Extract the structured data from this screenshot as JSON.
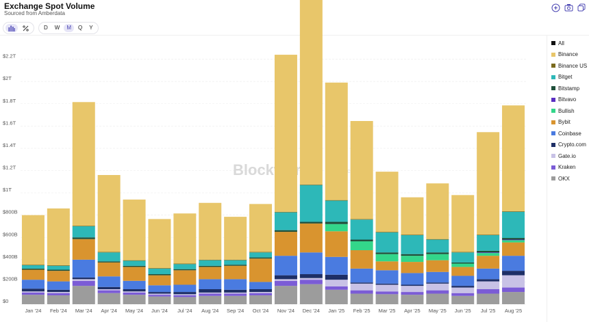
{
  "header": {
    "title": "Exchange Spot Volume",
    "subtitle": "Sourced from Amberdata"
  },
  "toolbar": {
    "chart_icons": [
      {
        "name": "bar-chart-icon",
        "active": true
      },
      {
        "name": "percent-icon",
        "active": false
      }
    ],
    "periods": [
      {
        "label": "D",
        "active": false
      },
      {
        "label": "W",
        "active": false
      },
      {
        "label": "M",
        "active": true
      },
      {
        "label": "Q",
        "active": false
      },
      {
        "label": "Y",
        "active": false
      }
    ]
  },
  "top_icons": [
    "zoom-in-icon",
    "camera-icon",
    "copy-icon"
  ],
  "watermark": {
    "brand": "Blockworks",
    "tag": "Research"
  },
  "legend": [
    {
      "label": "All",
      "color": "#111111"
    },
    {
      "label": "Binance",
      "color": "#E8C66A"
    },
    {
      "label": "Binance US",
      "color": "#7A6A1E"
    },
    {
      "label": "Bitget",
      "color": "#2DB8B8"
    },
    {
      "label": "Bitstamp",
      "color": "#1F4F3A"
    },
    {
      "label": "Bitvavo",
      "color": "#5A2FC2"
    },
    {
      "label": "Bullish",
      "color": "#33D68A"
    },
    {
      "label": "Bybit",
      "color": "#D9942F"
    },
    {
      "label": "Coinbase",
      "color": "#4A7BE0"
    },
    {
      "label": "Crypto.com",
      "color": "#1E2F66"
    },
    {
      "label": "Gate.io",
      "color": "#C8C2E6"
    },
    {
      "label": "Kraken",
      "color": "#7B5CD6"
    },
    {
      "label": "OKX",
      "color": "#9C9C9C"
    }
  ],
  "chart_data": {
    "type": "bar",
    "stacked": true,
    "ylim": [
      0,
      2400000000000
    ],
    "yticks": [
      {
        "value": 0,
        "label": "$0"
      },
      {
        "value": 200000000000,
        "label": "$200B"
      },
      {
        "value": 400000000000,
        "label": "$400B"
      },
      {
        "value": 600000000000,
        "label": "$600B"
      },
      {
        "value": 800000000000,
        "label": "$800B"
      },
      {
        "value": 1000000000000,
        "label": "$1T"
      },
      {
        "value": 1200000000000,
        "label": "$1.2T"
      },
      {
        "value": 1400000000000,
        "label": "$1.4T"
      },
      {
        "value": 1600000000000,
        "label": "$1.6T"
      },
      {
        "value": 1800000000000,
        "label": "$1.8T"
      },
      {
        "value": 2000000000000,
        "label": "$2T"
      },
      {
        "value": 2200000000000,
        "label": "$2.2T"
      }
    ],
    "grid": true,
    "legend_position": "right",
    "categories": [
      "Jan '24",
      "Feb '24",
      "Mar '24",
      "Apr '24",
      "May '24",
      "Jun '24",
      "Jul '24",
      "Aug '24",
      "Sep '24",
      "Oct '24",
      "Nov '24",
      "Dec '24",
      "Jan '25",
      "Feb '25",
      "Mar '25",
      "Apr '25",
      "May '25",
      "Jun '25",
      "Jul '25",
      "Aug '25"
    ],
    "series": [
      {
        "name": "OKX",
        "color": "#9C9C9C",
        "values": [
          85,
          80,
          165,
          100,
          85,
          70,
          65,
          75,
          75,
          80,
          165,
          180,
          130,
          95,
          90,
          85,
          95,
          75,
          95,
          110
        ]
      },
      {
        "name": "Kraken",
        "color": "#7B5CD6",
        "values": [
          20,
          20,
          45,
          25,
          20,
          15,
          15,
          20,
          20,
          20,
          45,
          40,
          30,
          30,
          25,
          25,
          30,
          25,
          40,
          40
        ]
      },
      {
        "name": "Gate.io",
        "color": "#C8C2E6",
        "values": [
          10,
          10,
          15,
          10,
          10,
          10,
          10,
          10,
          10,
          10,
          15,
          15,
          60,
          60,
          60,
          55,
          60,
          50,
          70,
          110
        ]
      },
      {
        "name": "Crypto.com",
        "color": "#1E2F66",
        "values": [
          25,
          20,
          15,
          20,
          20,
          15,
          20,
          30,
          25,
          25,
          35,
          35,
          45,
          10,
          10,
          10,
          10,
          15,
          20,
          40
        ]
      },
      {
        "name": "Coinbase",
        "color": "#4A7BE0",
        "values": [
          80,
          75,
          160,
          95,
          75,
          60,
          65,
          90,
          95,
          65,
          175,
          195,
          160,
          125,
          120,
          105,
          95,
          90,
          95,
          135
        ]
      },
      {
        "name": "Bybit",
        "color": "#D9942F",
        "values": [
          90,
          95,
          185,
          125,
          125,
          90,
          130,
          110,
          120,
          210,
          215,
          260,
          230,
          165,
          80,
          100,
          105,
          80,
          115,
          120
        ]
      },
      {
        "name": "Bullish",
        "color": "#33D68A",
        "values": [
          0,
          0,
          0,
          0,
          0,
          0,
          0,
          0,
          0,
          0,
          0,
          0,
          65,
          80,
          65,
          55,
          55,
          30,
          25,
          20
        ]
      },
      {
        "name": "Bitvavo",
        "color": "#5A2FC2",
        "values": [
          0,
          0,
          0,
          0,
          0,
          0,
          0,
          0,
          0,
          0,
          0,
          0,
          0,
          0,
          0,
          0,
          0,
          0,
          5,
          5
        ]
      },
      {
        "name": "Bitstamp",
        "color": "#1F4F3A",
        "values": [
          10,
          10,
          15,
          10,
          10,
          10,
          10,
          10,
          10,
          10,
          15,
          15,
          20,
          15,
          15,
          15,
          15,
          10,
          15,
          15
        ]
      },
      {
        "name": "Bitget",
        "color": "#2DB8B8",
        "values": [
          30,
          35,
          100,
          80,
          45,
          50,
          45,
          50,
          40,
          45,
          160,
          330,
          190,
          180,
          180,
          170,
          115,
          90,
          140,
          235
        ]
      },
      {
        "name": "Binance US",
        "color": "#7A6A1E",
        "values": [
          5,
          5,
          5,
          5,
          5,
          5,
          5,
          5,
          5,
          5,
          5,
          5,
          5,
          5,
          5,
          5,
          5,
          5,
          5,
          5
        ]
      },
      {
        "name": "Binance",
        "color": "#E8C66A",
        "values": [
          445,
          510,
          1110,
          690,
          545,
          440,
          450,
          510,
          385,
          430,
          1410,
          1870,
          1055,
          880,
          540,
          335,
          500,
          510,
          920,
          950
        ]
      }
    ],
    "value_unit": "billions USD"
  }
}
